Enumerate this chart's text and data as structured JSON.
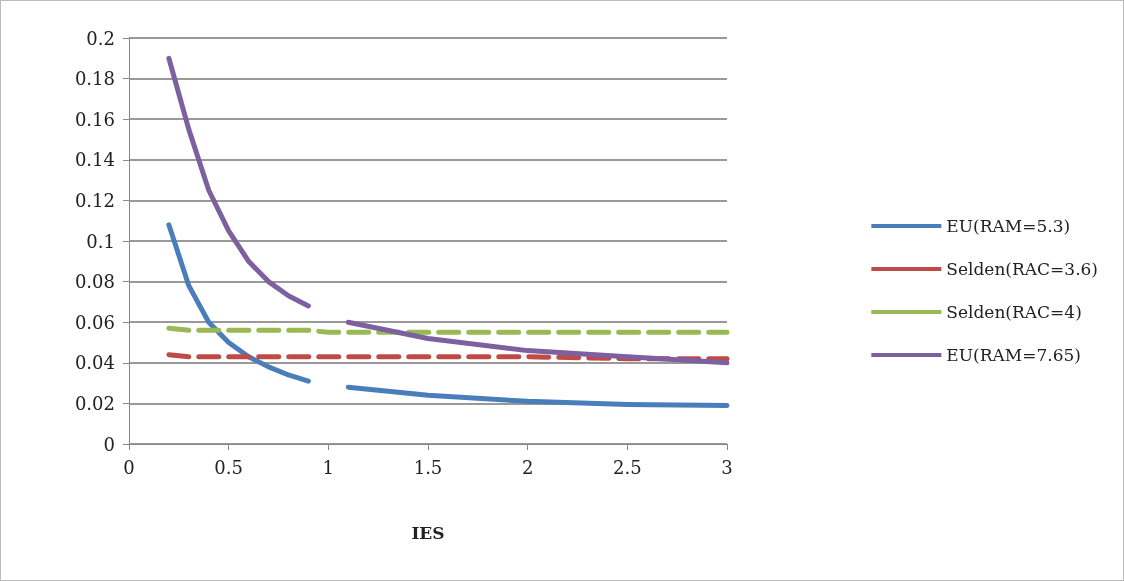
{
  "chart_data": {
    "type": "line",
    "xlabel": "IES",
    "x": [
      0.2,
      0.3,
      0.4,
      0.5,
      0.6,
      0.7,
      0.8,
      0.9,
      1.0,
      1.1,
      1.5,
      2,
      2.5,
      3
    ],
    "series": [
      {
        "name": "EU(RAM=5.3)",
        "color": "#4a7ebb",
        "line_style": "solid",
        "values": [
          0.108,
          0.078,
          0.06,
          0.05,
          0.043,
          0.038,
          0.034,
          0.031,
          null,
          0.028,
          0.024,
          0.021,
          0.0195,
          0.019
        ]
      },
      {
        "name": "Selden(RAC=3.6)",
        "color": "#be4b48",
        "line_style": "dashed",
        "values": [
          0.044,
          0.043,
          0.043,
          0.043,
          0.043,
          0.043,
          0.043,
          0.043,
          0.043,
          0.043,
          0.043,
          0.043,
          0.042,
          0.042
        ]
      },
      {
        "name": "Selden(RAC=4)",
        "color": "#98b954",
        "line_style": "dashed",
        "values": [
          0.057,
          0.056,
          0.056,
          0.056,
          0.056,
          0.056,
          0.056,
          0.056,
          0.055,
          0.055,
          0.055,
          0.055,
          0.055,
          0.055
        ]
      },
      {
        "name": "EU(RAM=7.65)",
        "color": "#7d60a0",
        "line_style": "solid",
        "values": [
          0.19,
          0.155,
          0.125,
          0.105,
          0.09,
          0.08,
          0.073,
          0.068,
          null,
          0.06,
          0.052,
          0.046,
          0.043,
          0.04
        ]
      }
    ],
    "xlim": [
      0,
      3
    ],
    "xticks": [
      0,
      0.5,
      1,
      1.5,
      2,
      2.5,
      3
    ],
    "ylim": [
      0,
      0.2
    ],
    "yticks": [
      0,
      0.02,
      0.04,
      0.06,
      0.08,
      0.1,
      0.12,
      0.14,
      0.16,
      0.18,
      0.2
    ],
    "grid": "y",
    "legend": "right",
    "marker": "none"
  }
}
